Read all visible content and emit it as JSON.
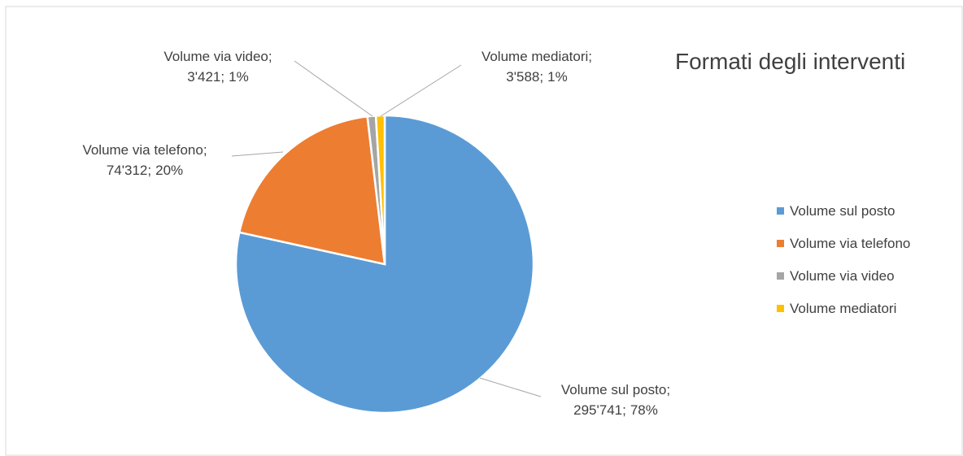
{
  "chart_data": {
    "type": "pie",
    "title": "Formati degli interventi",
    "categories": [
      "Volume sul posto",
      "Volume via telefono",
      "Volume via video",
      "Volume mediatori"
    ],
    "values": [
      295741,
      74312,
      3421,
      3588
    ],
    "value_labels": [
      "295'741",
      "74'312",
      "3'421",
      "3'588"
    ],
    "percents": [
      78,
      20,
      1,
      1
    ],
    "percent_labels": [
      "78%",
      "20%",
      "1%",
      "1%"
    ],
    "label_separator": ";",
    "colors": [
      "#5b9bd5",
      "#ed7d31",
      "#a5a5a5",
      "#ffc000"
    ],
    "legend": "right"
  }
}
